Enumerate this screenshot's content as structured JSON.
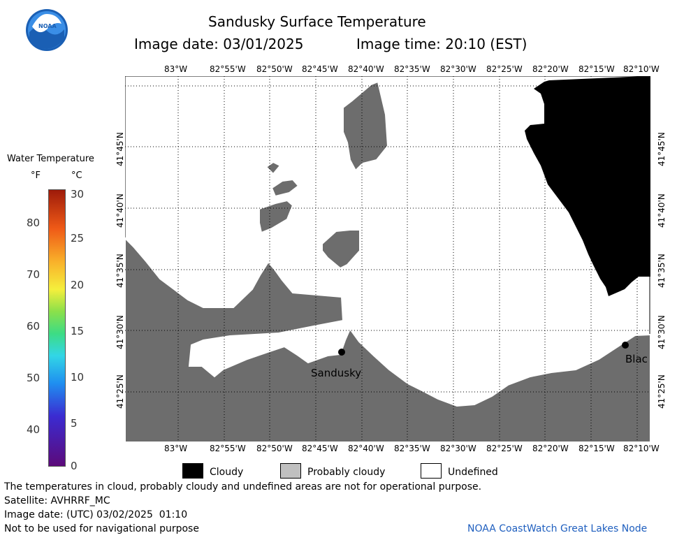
{
  "header": {
    "title": "Sandusky Surface Temperature",
    "image_date_label": "Image date: 03/01/2025",
    "image_time_label": "Image time: 20:10 (EST)"
  },
  "logo": {
    "text": "NOAA"
  },
  "colorbar": {
    "title": "Water Temperature",
    "unit_f": "°F",
    "unit_c": "°C",
    "f_ticks": [
      "40",
      "50",
      "60",
      "70",
      "80"
    ],
    "c_ticks": [
      "0",
      "5",
      "10",
      "15",
      "20",
      "25",
      "30"
    ]
  },
  "map": {
    "lon_ticks": [
      "83°W",
      "82°55'W",
      "82°50'W",
      "82°45'W",
      "82°40'W",
      "82°35'W",
      "82°30'W",
      "82°25'W",
      "82°20'W",
      "82°15'W",
      "82°10'W"
    ],
    "lat_ticks": [
      "41°45'N",
      "41°40'N",
      "41°35'N",
      "41°30'N",
      "41°25'N"
    ],
    "places": [
      {
        "name": "Sandusky"
      },
      {
        "name": "Blac"
      }
    ],
    "colors": {
      "land": "#6d6d6d",
      "cloud": "#000000",
      "water": "#ffffff"
    }
  },
  "legend": {
    "items": [
      {
        "label": "Cloudy",
        "color": "#000000"
      },
      {
        "label": "Probably cloudy",
        "color": "#c0c0c0"
      },
      {
        "label": "Undefined",
        "color": "#ffffff"
      }
    ]
  },
  "footer": {
    "disclaimer": "The temperatures in cloud, probably cloudy and undefined areas are not for operational purpose.",
    "satellite": "Satellite: AVHRRF_MC",
    "utc_date": "Image date: (UTC) 03/02/2025  01:10",
    "nav_warning": "Not to be used for navigational purpose",
    "node": "NOAA CoastWatch Great Lakes Node"
  }
}
